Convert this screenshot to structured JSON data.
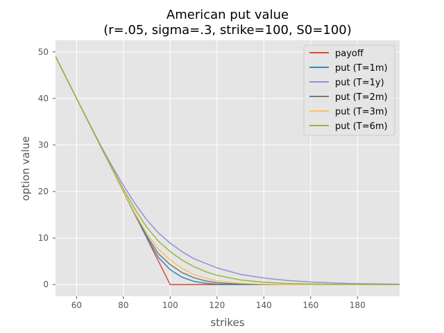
{
  "chart_data": {
    "type": "line",
    "title": "American put value",
    "subtitle": "(r=.05, sigma=.3, strike=100, S0=100)",
    "xlabel": "strikes",
    "ylabel": "option value",
    "xlim": [
      51,
      198
    ],
    "ylim": [
      -2.5,
      52.5
    ],
    "xticks": [
      60,
      80,
      100,
      120,
      140,
      160,
      180
    ],
    "yticks": [
      0,
      10,
      20,
      30,
      40,
      50
    ],
    "grid": true,
    "legend_position": "top-right",
    "series": [
      {
        "name": "payoff",
        "color": "#E24A33",
        "x": [
          51,
          60,
          80,
          100,
          198
        ],
        "y": [
          49,
          40,
          20,
          0,
          0
        ]
      },
      {
        "name": "put (T=1m)",
        "color": "#348ABD",
        "x": [
          51,
          60,
          70,
          80,
          85,
          90,
          95,
          100,
          105,
          110,
          115,
          120,
          130,
          140,
          160,
          198
        ],
        "y": [
          49,
          40,
          30,
          20,
          15,
          10.1,
          5.8,
          3.2,
          1.6,
          0.7,
          0.3,
          0.1,
          0,
          0,
          0,
          0
        ]
      },
      {
        "name": "put (T=1y)",
        "color": "#988ED5",
        "x": [
          51,
          60,
          70,
          75,
          80,
          85,
          90,
          95,
          100,
          105,
          110,
          120,
          130,
          140,
          150,
          160,
          170,
          180,
          198
        ],
        "y": [
          49,
          40,
          30.2,
          25.6,
          21.3,
          17.4,
          13.9,
          11.1,
          8.9,
          7.1,
          5.6,
          3.6,
          2.2,
          1.4,
          0.9,
          0.55,
          0.35,
          0.2,
          0.1
        ]
      },
      {
        "name": "put (T=2m)",
        "color": "#777777",
        "x": [
          51,
          60,
          70,
          80,
          85,
          90,
          95,
          100,
          105,
          110,
          115,
          120,
          130,
          140,
          160,
          198
        ],
        "y": [
          49,
          40,
          30,
          20,
          15.1,
          10.5,
          6.6,
          4.3,
          2.6,
          1.5,
          0.8,
          0.4,
          0.1,
          0,
          0,
          0
        ]
      },
      {
        "name": "put (T=3m)",
        "color": "#FBC15E",
        "x": [
          51,
          60,
          70,
          80,
          85,
          90,
          95,
          100,
          105,
          110,
          115,
          120,
          130,
          140,
          150,
          160,
          198
        ],
        "y": [
          49,
          40,
          30,
          20.1,
          15.3,
          11.0,
          7.6,
          5.3,
          3.5,
          2.2,
          1.4,
          0.8,
          0.3,
          0.1,
          0,
          0,
          0
        ]
      },
      {
        "name": "put (T=6m)",
        "color": "#8EBA42",
        "x": [
          51,
          60,
          70,
          80,
          85,
          90,
          95,
          100,
          105,
          110,
          115,
          120,
          130,
          140,
          150,
          160,
          170,
          198
        ],
        "y": [
          49,
          40,
          30,
          20.5,
          16.2,
          12.3,
          9.3,
          7.1,
          5.3,
          3.9,
          2.8,
          2.0,
          1.0,
          0.5,
          0.25,
          0.12,
          0.06,
          0
        ]
      }
    ]
  },
  "colors": {
    "plot_background": "#E5E5E5",
    "grid": "#FFFFFF",
    "tick_text": "#555555"
  }
}
